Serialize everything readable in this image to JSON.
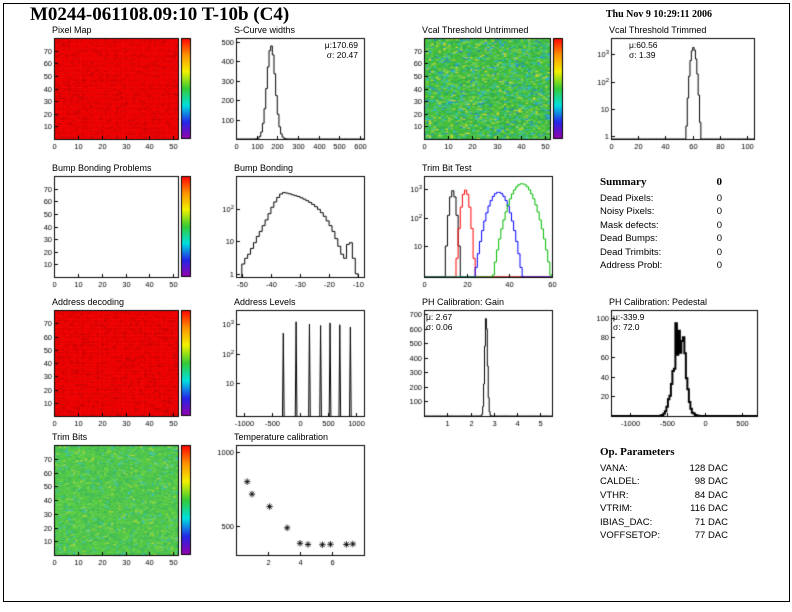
{
  "header": {
    "title": "M0244-061108.09:10 T-10b (C4)",
    "date": "Thu Nov 9 10:29:11 2006"
  },
  "colors": {
    "heatmap_red": "#f40000",
    "heatmap_green": "#3fba3f",
    "hist_line": "#000000"
  },
  "summary": {
    "title": "Summary",
    "value": "0",
    "rows": [
      {
        "label": "Dead Pixels:",
        "value": "0"
      },
      {
        "label": "Noisy Pixels:",
        "value": "0"
      },
      {
        "label": "Mask defects:",
        "value": "0"
      },
      {
        "label": "Dead Bumps:",
        "value": "0"
      },
      {
        "label": "Dead Trimbits:",
        "value": "0"
      },
      {
        "label": "Address Probl:",
        "value": "0"
      }
    ]
  },
  "op_parameters": {
    "title": "Op. Parameters",
    "rows": [
      {
        "label": "VANA:",
        "value": "128 DAC"
      },
      {
        "label": "CALDEL:",
        "value": "98 DAC"
      },
      {
        "label": "VTHR:",
        "value": "84 DAC"
      },
      {
        "label": "VTRIM:",
        "value": "116 DAC"
      },
      {
        "label": "IBIAS_DAC:",
        "value": "71 DAC"
      },
      {
        "label": "VOFFSETOP:",
        "value": "77 DAC"
      }
    ]
  },
  "chart_data": [
    {
      "id": "pixel-map",
      "title": "Pixel Map",
      "type": "heatmap",
      "style": "red",
      "nx": 52,
      "ny": 80,
      "seed": 7,
      "colorbar": true,
      "axes": {
        "xmin": 0,
        "xmax": 52,
        "ymin": 0,
        "ymax": 80,
        "xticks": [
          0,
          10,
          20,
          30,
          40,
          50
        ],
        "yticks": [
          10,
          20,
          30,
          40,
          50,
          60,
          70
        ]
      }
    },
    {
      "id": "scurve-widths",
      "title": "S-Curve widths",
      "type": "gauss",
      "gauss": {
        "mu": 170.69,
        "sigma": 20.47,
        "amp": 480,
        "binw": 8
      },
      "stats": {
        "mu": "μ:170.69",
        "sigma": "σ: 20.47"
      },
      "axes": {
        "xmin": 0,
        "xmax": 620,
        "ymin": 0,
        "ymax": 520,
        "xticks": [
          0,
          100,
          200,
          300,
          400,
          500,
          600
        ],
        "yticks": [
          100,
          200,
          300,
          400,
          500
        ]
      }
    },
    {
      "id": "vcal-untrimmed",
      "title": "Vcal Threshold Untrimmed",
      "type": "heatmap",
      "style": "green-noisy",
      "nx": 52,
      "ny": 80,
      "seed": 13,
      "colorbar": true,
      "axes": {
        "xmin": 0,
        "xmax": 52,
        "ymin": 0,
        "ymax": 80,
        "xticks": [
          0,
          10,
          20,
          30,
          40,
          50
        ],
        "yticks": [
          10,
          20,
          30,
          40,
          50,
          60,
          70
        ]
      }
    },
    {
      "id": "vcal-trimmed",
      "title": "Vcal Threshold Trimmed",
      "type": "gauss",
      "gauss": {
        "mu": 60.56,
        "sigma": 1.39,
        "amp": 1800,
        "binw": 1
      },
      "stats": {
        "mu": "μ:60.56",
        "sigma": "σ: 1.39"
      },
      "axes": {
        "xmin": 0,
        "xmax": 105,
        "ymin": 0.8,
        "ymax": 4000,
        "ylog": true,
        "xticks": [
          0,
          20,
          40,
          60,
          80,
          100
        ],
        "yticks": [
          [
            1,
            "1"
          ],
          [
            10,
            "10"
          ],
          [
            100,
            "10^2"
          ],
          [
            1000,
            "10^3"
          ]
        ]
      }
    },
    {
      "id": "bump-problems",
      "title": "Bump Bonding Problems",
      "type": "empty",
      "colorbar": true,
      "axes": {
        "xmin": 0,
        "xmax": 52,
        "ymin": 0,
        "ymax": 80,
        "xticks": [
          0,
          10,
          20,
          30,
          40,
          50
        ],
        "yticks": [
          10,
          20,
          30,
          40,
          50,
          60,
          70
        ]
      }
    },
    {
      "id": "bump-bonding",
      "title": "Bump Bonding",
      "type": "bins",
      "bins": {
        "x0": -50,
        "binw": 1,
        "counts": [
          2,
          3,
          4,
          6,
          9,
          14,
          20,
          30,
          45,
          70,
          110,
          160,
          220,
          280,
          310,
          300,
          285,
          265,
          250,
          235,
          215,
          195,
          175,
          155,
          135,
          115,
          95,
          75,
          58,
          42,
          30,
          20,
          12,
          7,
          4,
          3,
          8,
          9,
          3,
          1
        ]
      },
      "axes": {
        "xmin": -52,
        "xmax": -8,
        "ymin": 0.8,
        "ymax": 1000,
        "ylog": true,
        "xticks": [
          -50,
          -40,
          -30,
          -20,
          -10
        ],
        "yticks": [
          [
            1,
            "1"
          ],
          [
            10,
            "10"
          ],
          [
            100,
            "10^2"
          ]
        ]
      }
    },
    {
      "id": "trimbit-test",
      "title": "Trim Bit Test",
      "type": "multigauss",
      "binw": 1,
      "series": [
        {
          "name": "trimbit-14",
          "color": "#000000",
          "mu": 13.5,
          "sigma": 1.0,
          "amp": 900
        },
        {
          "name": "trimbit-13",
          "color": "#ff0000",
          "mu": 19.5,
          "sigma": 1.2,
          "amp": 950
        },
        {
          "name": "trimbit-11",
          "color": "#0000ff",
          "mu": 35.0,
          "sigma": 3.0,
          "amp": 800
        },
        {
          "name": "trimbit-7",
          "color": "#00bb00",
          "mu": 46.0,
          "sigma": 3.5,
          "amp": 1600
        }
      ],
      "axes": {
        "xmin": 0,
        "xmax": 60,
        "ymin": 0.8,
        "ymax": 3000,
        "ylog": true,
        "xticks": [
          0,
          20,
          40,
          60
        ],
        "yticks": [
          [
            10,
            "10"
          ],
          [
            100,
            "10^2"
          ],
          [
            1000,
            "10^3"
          ]
        ]
      }
    },
    {
      "id": "address-decoding",
      "title": "Address decoding",
      "type": "heatmap",
      "style": "red",
      "nx": 52,
      "ny": 80,
      "seed": 19,
      "colorbar": true,
      "axes": {
        "xmin": 0,
        "xmax": 52,
        "ymin": 0,
        "ymax": 80,
        "xticks": [
          0,
          10,
          20,
          30,
          40,
          50
        ],
        "yticks": [
          10,
          20,
          30,
          40,
          50,
          60,
          70
        ]
      }
    },
    {
      "id": "address-levels",
      "title": "Address Levels",
      "type": "spikes",
      "spike_halfwidth": 15,
      "spikes": [
        [
          -300,
          500
        ],
        [
          -70,
          1200
        ],
        [
          170,
          1000
        ],
        [
          370,
          900
        ],
        [
          540,
          1100
        ],
        [
          715,
          950
        ],
        [
          905,
          800
        ]
      ],
      "axes": {
        "xmin": -1150,
        "xmax": 1150,
        "ymin": 0.8,
        "ymax": 3000,
        "ylog": true,
        "xticks": [
          -1000,
          -500,
          0,
          500,
          1000
        ],
        "yticks": [
          [
            10,
            "10"
          ],
          [
            100,
            "10^2"
          ],
          [
            1000,
            "10^3"
          ]
        ]
      }
    },
    {
      "id": "ph-gain",
      "title": "PH Calibration: Gain",
      "type": "gauss",
      "gauss": {
        "mu": 2.67,
        "sigma": 0.06,
        "amp": 680,
        "binw": 0.04
      },
      "stats": {
        "mu": "μ: 2.67",
        "sigma": "σ: 0.06"
      },
      "axes": {
        "xmin": 0,
        "xmax": 5.5,
        "ymin": 0,
        "ymax": 730,
        "xticks": [
          1,
          2,
          3,
          4,
          5
        ],
        "yticks": [
          100,
          200,
          300,
          400,
          500,
          600,
          700
        ]
      }
    },
    {
      "id": "ph-pedestal",
      "title": "PH Calibration: Pedestal",
      "type": "gauss",
      "jitter": 0.3,
      "lw": 2,
      "seed": 31,
      "gauss": {
        "mu": -339.9,
        "sigma": 72.0,
        "amp": 92,
        "binw": 20
      },
      "stats": {
        "mu": "μ:-339.9",
        "sigma": "σ: 72.0"
      },
      "axes": {
        "xmin": -1250,
        "xmax": 700,
        "ymin": 0,
        "ymax": 108,
        "xticks": [
          -1000,
          -500,
          0,
          500
        ],
        "yticks": [
          20,
          40,
          60,
          80,
          100
        ]
      }
    },
    {
      "id": "trim-bits",
      "title": "Trim Bits",
      "type": "heatmap",
      "style": "green-smooth",
      "nx": 52,
      "ny": 80,
      "seed": 23,
      "colorbar": true,
      "axes": {
        "xmin": 0,
        "xmax": 52,
        "ymin": 0,
        "ymax": 80,
        "xticks": [
          0,
          10,
          20,
          30,
          40,
          50
        ],
        "yticks": [
          10,
          20,
          30,
          40,
          50,
          60,
          70
        ]
      }
    },
    {
      "id": "temp-cal",
      "title": "Temperature calibration",
      "type": "scatter",
      "points": [
        [
          0.7,
          800
        ],
        [
          1.0,
          715
        ],
        [
          2.1,
          630
        ],
        [
          3.2,
          485
        ],
        [
          4.0,
          380
        ],
        [
          4.5,
          372
        ],
        [
          5.4,
          370
        ],
        [
          5.9,
          373
        ],
        [
          6.9,
          372
        ],
        [
          7.3,
          375
        ]
      ],
      "axes": {
        "xmin": 0,
        "xmax": 8,
        "ymin": 300,
        "ymax": 1050,
        "xticks": [
          2,
          4,
          6
        ],
        "yticks": [
          500,
          1000
        ]
      }
    }
  ]
}
